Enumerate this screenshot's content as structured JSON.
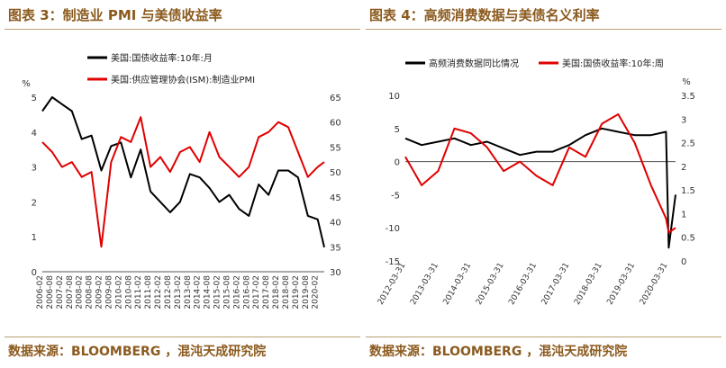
{
  "charts": {
    "left": {
      "title": "图表 3：制造业 PMI 与美债收益率",
      "source": "数据来源：BLOOMBERG ，混沌天成研究院"
    },
    "right": {
      "title": "图表 4：高频消费数据与美债名义利率",
      "source": "数据来源：BLOOMBERG ，混沌天成研究院"
    }
  },
  "chart_data": [
    {
      "type": "line",
      "grid": false,
      "legend_position": "top",
      "x_tick_labels": [
        "2006-02",
        "2006-08",
        "2007-02",
        "2007-08",
        "2008-02",
        "2008-08",
        "2009-02",
        "2009-08",
        "2010-02",
        "2010-08",
        "2011-02",
        "2011-08",
        "2012-02",
        "2012-08",
        "2013-02",
        "2013-08",
        "2014-02",
        "2014-08",
        "2015-02",
        "2015-08",
        "2016-02",
        "2016-08",
        "2017-02",
        "2017-08",
        "2018-02",
        "2018-08",
        "2019-02",
        "2019-08",
        "2020-02"
      ],
      "y_left": {
        "unit": "%",
        "range": [
          0,
          5
        ],
        "ticks": [
          0,
          1,
          2,
          3,
          4,
          5
        ]
      },
      "y_right": {
        "range": [
          30,
          65
        ],
        "ticks": [
          30,
          35,
          40,
          45,
          50,
          55,
          60,
          65
        ]
      },
      "series": [
        {
          "name": "美国:国债收益率:10年:月",
          "color": "#000000",
          "axis": "left",
          "x": [
            "2006-02",
            "2006-08",
            "2007-02",
            "2007-08",
            "2008-02",
            "2008-08",
            "2009-02",
            "2009-08",
            "2010-02",
            "2010-08",
            "2011-02",
            "2011-08",
            "2012-02",
            "2012-08",
            "2013-02",
            "2013-08",
            "2014-02",
            "2014-08",
            "2015-02",
            "2015-08",
            "2016-02",
            "2016-08",
            "2017-02",
            "2017-08",
            "2018-02",
            "2018-08",
            "2019-02",
            "2019-08",
            "2020-02",
            "2020-06"
          ],
          "values": [
            4.6,
            5.0,
            4.8,
            4.6,
            3.8,
            3.9,
            2.9,
            3.6,
            3.7,
            2.7,
            3.5,
            2.3,
            2.0,
            1.7,
            2.0,
            2.8,
            2.7,
            2.4,
            2.0,
            2.2,
            1.8,
            1.6,
            2.5,
            2.2,
            2.9,
            2.9,
            2.7,
            1.6,
            1.5,
            0.7
          ]
        },
        {
          "name": "美国:供应管理协会(ISM):制造业PMI",
          "color": "#e00000",
          "axis": "right",
          "x": [
            "2006-02",
            "2006-08",
            "2007-02",
            "2007-08",
            "2008-02",
            "2008-08",
            "2009-02",
            "2009-08",
            "2010-02",
            "2010-08",
            "2011-02",
            "2011-08",
            "2012-02",
            "2012-08",
            "2013-02",
            "2013-08",
            "2014-02",
            "2014-08",
            "2015-02",
            "2015-08",
            "2016-02",
            "2016-08",
            "2017-02",
            "2017-08",
            "2018-02",
            "2018-08",
            "2019-02",
            "2019-08",
            "2020-02",
            "2020-06"
          ],
          "values": [
            56,
            54,
            51,
            52,
            49,
            50,
            35,
            52,
            57,
            56,
            61,
            51,
            53,
            50,
            54,
            55,
            52,
            58,
            53,
            51,
            49,
            51,
            57,
            58,
            60,
            59,
            54,
            49,
            51,
            52
          ]
        }
      ]
    },
    {
      "type": "line",
      "grid": false,
      "legend_position": "top",
      "x_tick_labels": [
        "2012-03-31",
        "2013-03-31",
        "2014-03-31",
        "2015-03-31",
        "2016-03-31",
        "2017-03-31",
        "2018-03-31",
        "2019-03-31",
        "2020-03-31"
      ],
      "y_left": {
        "range": [
          -15,
          10
        ],
        "ticks": [
          -15,
          -10,
          -5,
          0,
          5,
          10
        ]
      },
      "y_right": {
        "unit": "%",
        "range": [
          0,
          3.5
        ],
        "ticks": [
          0,
          0.5,
          1,
          1.5,
          2,
          2.5,
          3,
          3.5
        ]
      },
      "series": [
        {
          "name": "高频消费数据同比情况",
          "color": "#000000",
          "axis": "left",
          "x": [
            "2012-03-31",
            "2012-09-30",
            "2013-03-31",
            "2013-09-30",
            "2014-03-31",
            "2014-09-30",
            "2015-03-31",
            "2015-09-30",
            "2016-03-31",
            "2016-09-30",
            "2017-03-31",
            "2017-09-30",
            "2018-03-31",
            "2018-09-30",
            "2019-03-31",
            "2019-09-30",
            "2020-03-15",
            "2020-04-15",
            "2020-06-30"
          ],
          "values": [
            3.5,
            2.5,
            3.0,
            3.5,
            2.5,
            3.0,
            2.0,
            1.0,
            1.5,
            1.5,
            2.5,
            4.0,
            5.0,
            4.5,
            4.0,
            4.0,
            4.5,
            -13.0,
            -5.0
          ]
        },
        {
          "name": "美国:国债收益率:10年:周",
          "color": "#e00000",
          "axis": "right",
          "x": [
            "2012-03-31",
            "2012-09-30",
            "2013-03-31",
            "2013-09-30",
            "2014-03-31",
            "2014-09-30",
            "2015-03-31",
            "2015-09-30",
            "2016-03-31",
            "2016-09-30",
            "2017-03-31",
            "2017-09-30",
            "2018-03-31",
            "2018-09-30",
            "2019-03-31",
            "2019-09-30",
            "2020-03-15",
            "2020-04-15",
            "2020-06-30"
          ],
          "values": [
            2.2,
            1.6,
            1.9,
            2.8,
            2.7,
            2.4,
            1.9,
            2.1,
            1.8,
            1.6,
            2.4,
            2.2,
            2.9,
            3.1,
            2.5,
            1.6,
            0.9,
            0.6,
            0.7
          ]
        }
      ]
    }
  ]
}
